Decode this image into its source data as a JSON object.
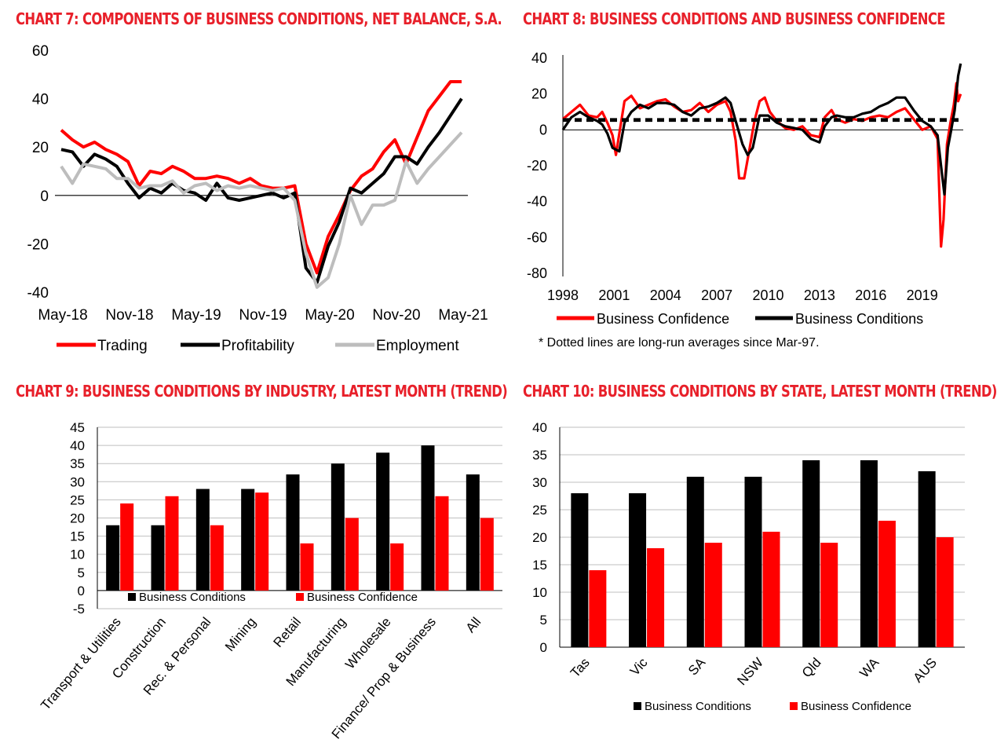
{
  "colors": {
    "red": "#ff0000",
    "black": "#000000",
    "grey": "#bdbdbd",
    "title_red": "#e8202a"
  },
  "chart_data": [
    {
      "id": "chart7",
      "type": "line",
      "title": "CHART 7: COMPONENTS OF BUSINESS CONDITIONS, NET BALANCE, S.A.",
      "xlabel": "",
      "ylabel": "",
      "ylim": [
        -40,
        60
      ],
      "yticks": [
        "60",
        "40",
        "20",
        "0",
        "-20",
        "-40"
      ],
      "xtick_labels": [
        "May-18",
        "Nov-18",
        "May-19",
        "Nov-19",
        "May-20",
        "Nov-20",
        "May-21"
      ],
      "x_months": [
        "May-18",
        "Jun-18",
        "Jul-18",
        "Aug-18",
        "Sep-18",
        "Oct-18",
        "Nov-18",
        "Dec-18",
        "Jan-19",
        "Feb-19",
        "Mar-19",
        "Apr-19",
        "May-19",
        "Jun-19",
        "Jul-19",
        "Aug-19",
        "Sep-19",
        "Oct-19",
        "Nov-19",
        "Dec-19",
        "Jan-20",
        "Feb-20",
        "Mar-20",
        "Apr-20",
        "May-20",
        "Jun-20",
        "Jul-20",
        "Aug-20",
        "Sep-20",
        "Oct-20",
        "Nov-20",
        "Dec-20",
        "Jan-21",
        "Feb-21",
        "Mar-21",
        "Apr-21",
        "May-21"
      ],
      "series": [
        {
          "name": "Trading",
          "color": "#ff0000",
          "values": [
            27,
            23,
            20,
            22,
            19,
            17,
            14,
            4,
            10,
            9,
            12,
            10,
            7,
            7,
            8,
            7,
            5,
            7,
            4,
            3,
            3,
            4,
            -20,
            -32,
            -17,
            -8,
            2,
            8,
            11,
            18,
            23,
            13,
            24,
            35,
            41,
            47,
            47
          ]
        },
        {
          "name": "Profitability",
          "color": "#000000",
          "values": [
            19,
            18,
            12,
            17,
            15,
            12,
            5,
            -1,
            3,
            1,
            5,
            2,
            1,
            -2,
            5,
            -1,
            -2,
            -1,
            0,
            1,
            -1,
            1,
            -30,
            -36,
            -21,
            -11,
            3,
            1,
            5,
            9,
            16,
            16,
            13,
            20,
            26,
            33,
            40
          ]
        },
        {
          "name": "Employment",
          "color": "#bdbdbd",
          "values": [
            12,
            5,
            13,
            12,
            11,
            7,
            7,
            3,
            4,
            4,
            6,
            1,
            4,
            5,
            2,
            4,
            3,
            4,
            3,
            2,
            3,
            -2,
            -24,
            -38,
            -34,
            -20,
            0,
            -12,
            -4,
            -4,
            -2,
            14,
            5,
            11,
            16,
            21,
            26
          ]
        }
      ],
      "legend": [
        "Trading",
        "Profitability",
        "Employment"
      ],
      "legend_position": "bottom"
    },
    {
      "id": "chart8",
      "type": "line",
      "title": "CHART 8: BUSINESS CONDITIONS AND BUSINESS CONFIDENCE",
      "xlabel": "",
      "ylabel": "",
      "ylim": [
        -80,
        40
      ],
      "yticks": [
        "40",
        "20",
        "0",
        "-20",
        "-40",
        "-60",
        "-80"
      ],
      "x_start": 1998,
      "x_end": 2021.4,
      "xtick_labels": [
        "1998",
        "2001",
        "2004",
        "2007",
        "2010",
        "2013",
        "2016",
        "2019"
      ],
      "series": [
        {
          "name": "Business Confidence",
          "color": "#ff0000",
          "average": 5,
          "points": [
            [
              1998,
              6
            ],
            [
              1998.5,
              10
            ],
            [
              1999,
              14
            ],
            [
              1999.5,
              8
            ],
            [
              2000,
              7
            ],
            [
              2000.3,
              10
            ],
            [
              2000.6,
              4
            ],
            [
              2000.9,
              -3
            ],
            [
              2001.1,
              -14
            ],
            [
              2001.3,
              -2
            ],
            [
              2001.6,
              16
            ],
            [
              2002,
              19
            ],
            [
              2002.5,
              12
            ],
            [
              2003,
              14
            ],
            [
              2003.5,
              16
            ],
            [
              2004,
              17
            ],
            [
              2004.5,
              13
            ],
            [
              2005,
              10
            ],
            [
              2005.5,
              11
            ],
            [
              2006,
              15
            ],
            [
              2006.5,
              10
            ],
            [
              2007,
              14
            ],
            [
              2007.5,
              16
            ],
            [
              2007.8,
              10
            ],
            [
              2008.1,
              -6
            ],
            [
              2008.3,
              -27
            ],
            [
              2008.6,
              -27
            ],
            [
              2008.9,
              -11
            ],
            [
              2009.2,
              5
            ],
            [
              2009.5,
              16
            ],
            [
              2009.8,
              18
            ],
            [
              2010.1,
              10
            ],
            [
              2010.5,
              5
            ],
            [
              2011,
              1
            ],
            [
              2011.5,
              0
            ],
            [
              2012,
              2
            ],
            [
              2012.5,
              -3
            ],
            [
              2013,
              -4
            ],
            [
              2013.3,
              7
            ],
            [
              2013.7,
              11
            ],
            [
              2014,
              6
            ],
            [
              2014.5,
              4
            ],
            [
              2015,
              6
            ],
            [
              2015.5,
              5
            ],
            [
              2016,
              7
            ],
            [
              2016.5,
              8
            ],
            [
              2017,
              7
            ],
            [
              2017.5,
              10
            ],
            [
              2018,
              12
            ],
            [
              2018.5,
              6
            ],
            [
              2019,
              0
            ],
            [
              2019.5,
              2
            ],
            [
              2019.9,
              -5
            ],
            [
              2020.1,
              -65
            ],
            [
              2020.25,
              -50
            ],
            [
              2020.45,
              -8
            ],
            [
              2020.65,
              4
            ],
            [
              2020.85,
              14
            ],
            [
              2021,
              26
            ],
            [
              2021.1,
              16
            ],
            [
              2021.25,
              20
            ]
          ]
        },
        {
          "name": "Business Conditions",
          "color": "#000000",
          "average": 6,
          "points": [
            [
              1998,
              0
            ],
            [
              1998.5,
              7
            ],
            [
              1999,
              10
            ],
            [
              1999.5,
              7
            ],
            [
              2000,
              5
            ],
            [
              2000.3,
              3
            ],
            [
              2000.6,
              -2
            ],
            [
              2000.9,
              -10
            ],
            [
              2001.3,
              -12
            ],
            [
              2001.6,
              4
            ],
            [
              2002,
              10
            ],
            [
              2002.5,
              14
            ],
            [
              2003,
              12
            ],
            [
              2003.5,
              15
            ],
            [
              2004,
              15
            ],
            [
              2004.5,
              14
            ],
            [
              2005,
              10
            ],
            [
              2005.5,
              8
            ],
            [
              2006,
              12
            ],
            [
              2006.5,
              13
            ],
            [
              2007,
              15
            ],
            [
              2007.5,
              18
            ],
            [
              2007.8,
              15
            ],
            [
              2008.1,
              5
            ],
            [
              2008.5,
              -8
            ],
            [
              2008.8,
              -14
            ],
            [
              2009.1,
              -10
            ],
            [
              2009.5,
              8
            ],
            [
              2010,
              8
            ],
            [
              2010.5,
              4
            ],
            [
              2011,
              2
            ],
            [
              2011.5,
              1
            ],
            [
              2012,
              0
            ],
            [
              2012.5,
              -5
            ],
            [
              2013,
              -7
            ],
            [
              2013.3,
              2
            ],
            [
              2013.7,
              7
            ],
            [
              2014,
              8
            ],
            [
              2014.5,
              7
            ],
            [
              2015,
              7
            ],
            [
              2015.5,
              9
            ],
            [
              2016,
              10
            ],
            [
              2016.5,
              13
            ],
            [
              2017,
              15
            ],
            [
              2017.5,
              18
            ],
            [
              2018,
              18
            ],
            [
              2018.5,
              11
            ],
            [
              2019,
              5
            ],
            [
              2019.5,
              2
            ],
            [
              2019.9,
              -3
            ],
            [
              2020.1,
              -20
            ],
            [
              2020.3,
              -36
            ],
            [
              2020.5,
              -10
            ],
            [
              2020.7,
              0
            ],
            [
              2020.9,
              11
            ],
            [
              2021.1,
              30
            ],
            [
              2021.25,
              37
            ]
          ]
        }
      ],
      "legend": [
        "Business Confidence",
        "Business Conditions"
      ],
      "legend_position": "bottom",
      "annotations": [
        "* Dotted lines are long-run  averages since Mar-97."
      ]
    },
    {
      "id": "chart9",
      "type": "bar",
      "title": "CHART 9: BUSINESS CONDITIONS BY INDUSTRY, LATEST MONTH (TREND)",
      "xlabel": "",
      "ylabel": "",
      "ylim": [
        -5,
        45
      ],
      "yticks": [
        "45",
        "40",
        "35",
        "30",
        "25",
        "20",
        "15",
        "10",
        "5",
        "0",
        "-5"
      ],
      "categories": [
        "Transport & Utilities",
        "Construction",
        "Rec. & Personal",
        "Mining",
        "Retail",
        "Manufacturing",
        "Wholesale",
        "Finance/ Prop & Business",
        "All"
      ],
      "series": [
        {
          "name": "Business Conditions",
          "color": "#000000",
          "values": [
            18,
            18,
            28,
            28,
            32,
            35,
            38,
            40,
            32
          ]
        },
        {
          "name": "Business Confidence",
          "color": "#ff0000",
          "values": [
            24,
            26,
            18,
            27,
            13,
            20,
            13,
            26,
            20
          ]
        }
      ],
      "legend": [
        "Business Conditions",
        "Business Confidence"
      ],
      "legend_position": "inside-bottom"
    },
    {
      "id": "chart10",
      "type": "bar",
      "title": "CHART 10: BUSINESS CONDITIONS BY STATE, LATEST MONTH (TREND)",
      "xlabel": "",
      "ylabel": "",
      "ylim": [
        0,
        40
      ],
      "yticks": [
        "40",
        "35",
        "30",
        "25",
        "20",
        "15",
        "10",
        "5",
        "0"
      ],
      "categories": [
        "Tas",
        "Vic",
        "SA",
        "NSW",
        "Qld",
        "WA",
        "AUS"
      ],
      "series": [
        {
          "name": "Business Conditions",
          "color": "#000000",
          "values": [
            28,
            28,
            31,
            31,
            34,
            34,
            32
          ]
        },
        {
          "name": "Business Confidence",
          "color": "#ff0000",
          "values": [
            14,
            18,
            19,
            21,
            19,
            23,
            20
          ]
        }
      ],
      "legend": [
        "Business Conditions",
        "Business Confidence"
      ],
      "legend_position": "bottom"
    }
  ]
}
